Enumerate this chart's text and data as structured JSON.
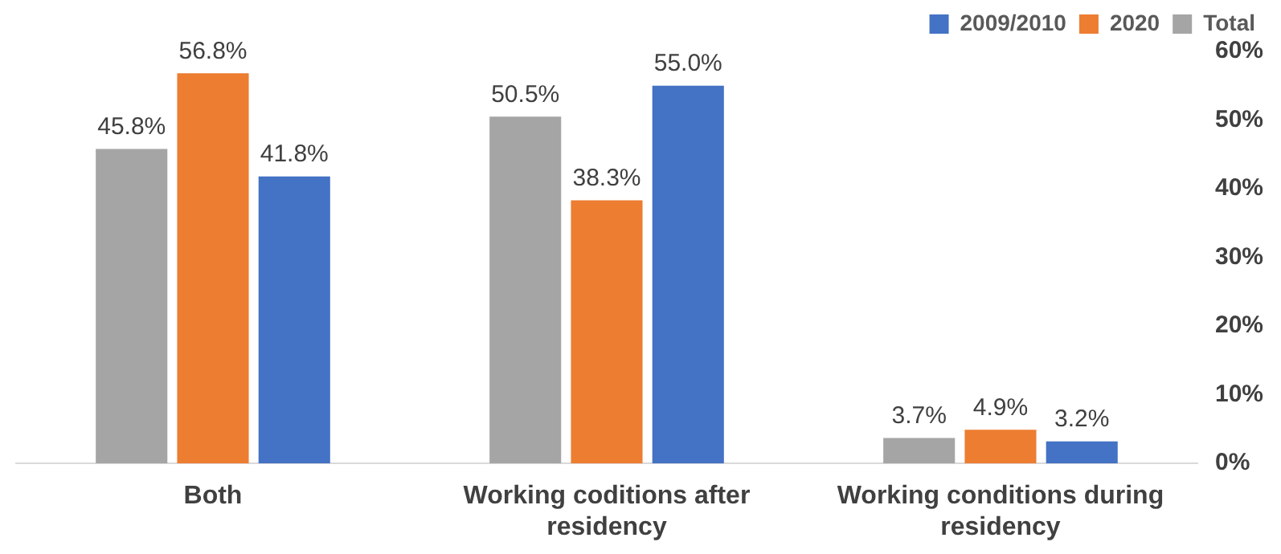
{
  "chart_data": {
    "type": "bar",
    "categories": [
      "Both",
      "Working coditions after residency",
      "Working conditions during residency"
    ],
    "series": [
      {
        "name": "Total",
        "color": "#a5a5a5",
        "values": [
          45.8,
          50.5,
          3.7
        ],
        "value_labels": [
          "45.8%",
          "50.5%",
          "3.7%"
        ]
      },
      {
        "name": "2020",
        "color": "#ed7d31",
        "values": [
          56.8,
          38.3,
          4.9
        ],
        "value_labels": [
          "56.8%",
          "38.3%",
          "4.9%"
        ]
      },
      {
        "name": "2009/2010",
        "color": "#4472c4",
        "values": [
          41.8,
          55.0,
          3.2
        ],
        "value_labels": [
          "41.8%",
          "55.0%",
          "3.2%"
        ]
      }
    ],
    "ylim": [
      0,
      60
    ],
    "yticks": [
      {
        "value": 0,
        "label": "0%"
      },
      {
        "value": 10,
        "label": "10%"
      },
      {
        "value": 20,
        "label": "20%"
      },
      {
        "value": 30,
        "label": "30%"
      },
      {
        "value": 40,
        "label": "40%"
      },
      {
        "value": 50,
        "label": "50%"
      },
      {
        "value": 60,
        "label": "60%"
      }
    ],
    "grid": false,
    "legend": "top right"
  }
}
